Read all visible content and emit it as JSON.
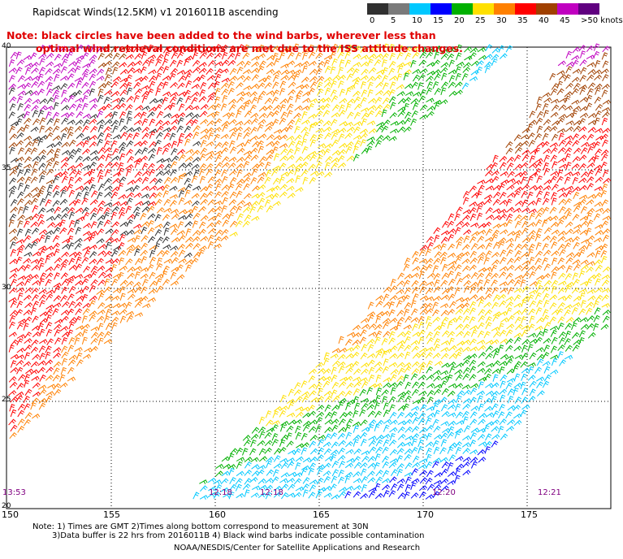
{
  "title": "Rapidscat Winds(12.5KM) v1 2016011B ascending",
  "note_line1": "Note: black circles have been added to the wind barbs, wherever less than",
  "note_line2": "optimal wind retrieval conditions are met due to the ISS attitude changes.",
  "colorbar": {
    "labels": [
      "0",
      "5",
      "10",
      "15",
      "20",
      "25",
      "30",
      "35",
      "40",
      "45",
      ">50 knots"
    ],
    "colors": [
      "#303030",
      "#7a7a7a",
      "#00c8ff",
      "#0000ff",
      "#00b000",
      "#ffe000",
      "#ff8000",
      "#ff0000",
      "#a04000",
      "#c000c0",
      "#600080"
    ]
  },
  "axes": {
    "x_ticks": [
      "150",
      "155",
      "160",
      "165",
      "170",
      "175"
    ],
    "y_ticks": [
      "40",
      "35",
      "30",
      "25",
      "20"
    ]
  },
  "pass_times": [
    "13:53",
    "12:18",
    "12:18",
    "12:20",
    "12:21"
  ],
  "footer": {
    "note1": "Note: 1) Times are GMT 2)Times along bottom correspond to measurement at 30N",
    "note2": "3)Data buffer is 22 hrs from 2016011B 4) Black wind barbs indicate possible contamination",
    "credit": "NOAA/NESDIS/Center for Satellite Applications and Research"
  }
}
